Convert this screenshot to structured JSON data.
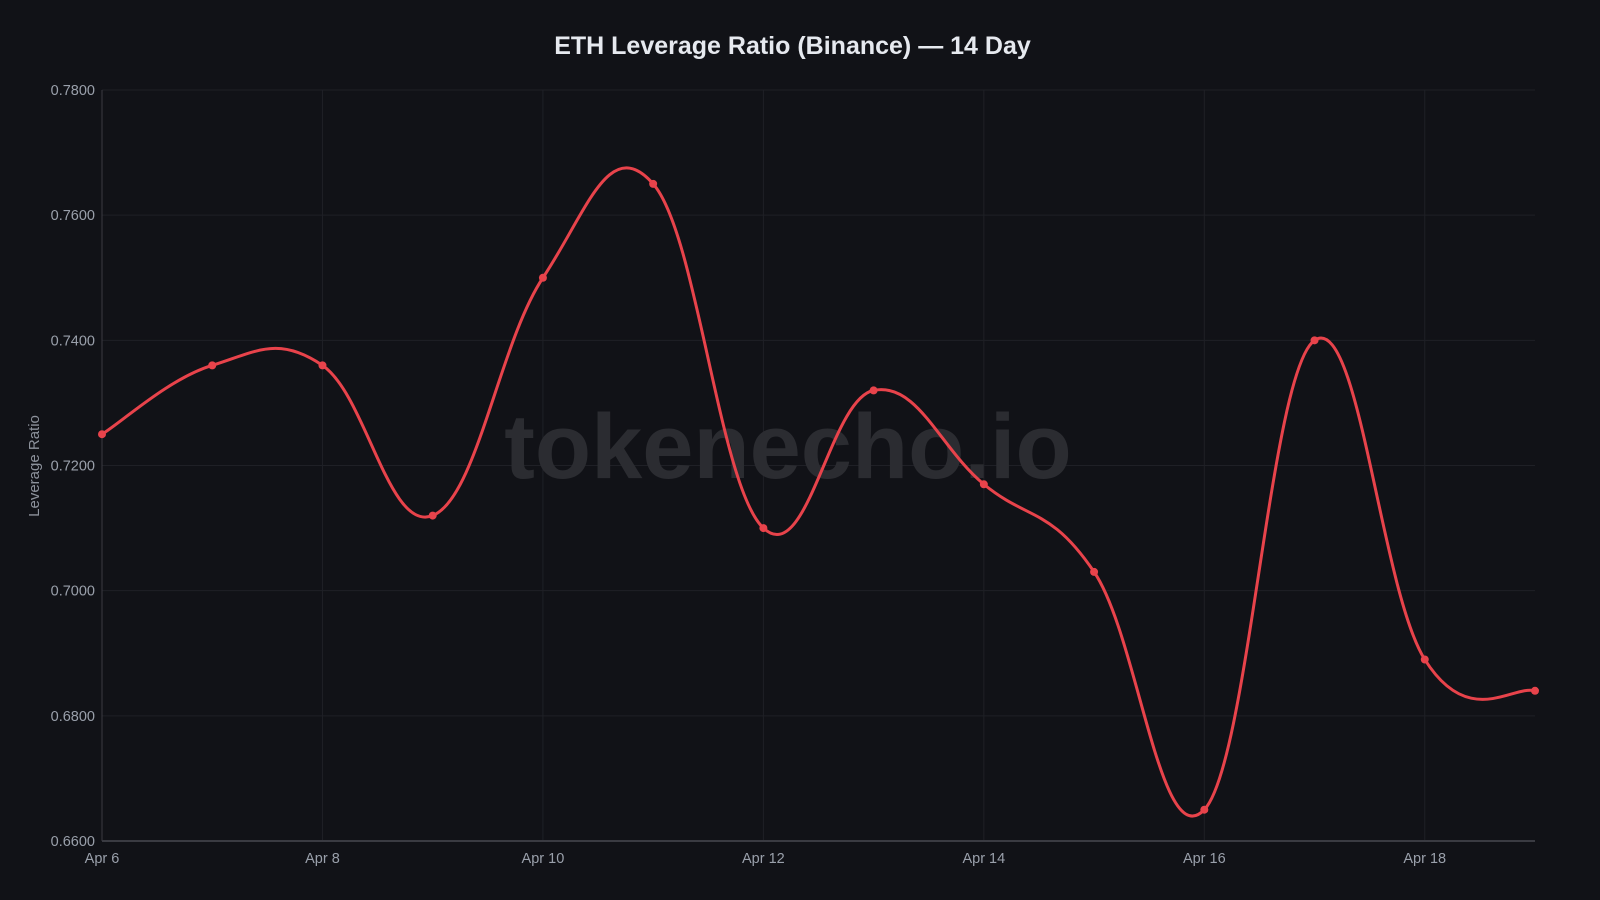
{
  "chart_data": {
    "type": "line",
    "title": "ETH Leverage Ratio (Binance) — 14 Day",
    "xlabel": "",
    "ylabel": "Leverage Ratio",
    "x": [
      "Apr 6",
      "Apr 7",
      "Apr 8",
      "Apr 9",
      "Apr 10",
      "Apr 11",
      "Apr 12",
      "Apr 13",
      "Apr 14",
      "Apr 15",
      "Apr 16",
      "Apr 17",
      "Apr 18",
      "Apr 19"
    ],
    "series": [
      {
        "name": "ETH Leverage Ratio",
        "color": "#e8434b",
        "values": [
          0.725,
          0.736,
          0.736,
          0.712,
          0.75,
          0.765,
          0.71,
          0.732,
          0.717,
          0.703,
          0.665,
          0.74,
          0.689,
          0.684
        ]
      }
    ],
    "ylim": [
      0.66,
      0.78
    ],
    "yticks": [
      "0.7800",
      "0.7600",
      "0.7400",
      "0.7200",
      "0.7000",
      "0.6800",
      "0.6600"
    ],
    "xticks": [
      "Apr 6",
      "Apr 8",
      "Apr 10",
      "Apr 12",
      "Apr 14",
      "Apr 16",
      "Apr 18"
    ],
    "grid": true,
    "legend": "none",
    "watermark": "tokenecho.io"
  },
  "colors": {
    "background": "#111217",
    "grid": "#1f2026",
    "axis": "#3a3b42",
    "line": "#e8434b",
    "title": "#e6e9ef",
    "tick": "#9aa0ab"
  }
}
